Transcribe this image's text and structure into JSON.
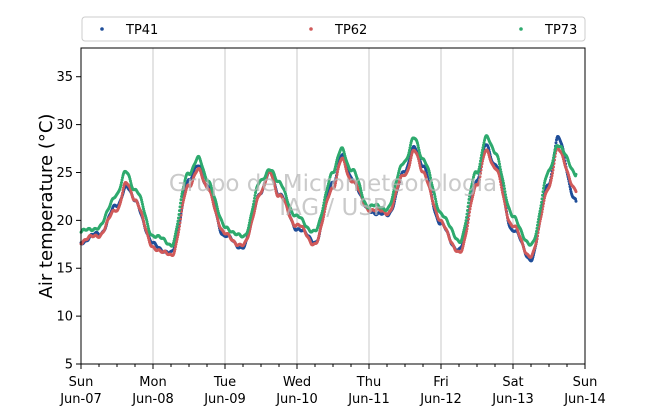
{
  "chart_data": {
    "type": "scatter",
    "ylabel": "Air temperature (°C)",
    "xlabel": "",
    "watermark": [
      "Grupo de Micrometeorologia",
      "IAG / USP"
    ],
    "ylim": [
      5,
      38
    ],
    "xlim": [
      "2020-06-07 00:00",
      "2020-06-14 00:00"
    ],
    "yticks": [
      5,
      10,
      15,
      20,
      25,
      30,
      35
    ],
    "xticks": [
      {
        "day": "Sun",
        "date": "Jun-07"
      },
      {
        "day": "Mon",
        "date": "Jun-08"
      },
      {
        "day": "Tue",
        "date": "Jun-09"
      },
      {
        "day": "Wed",
        "date": "Jun-10"
      },
      {
        "day": "Thu",
        "date": "Jun-11"
      },
      {
        "day": "Fri",
        "date": "Jun-12"
      },
      {
        "day": "Sat",
        "date": "Jun-13"
      },
      {
        "day": "Sun",
        "date": "Jun-14"
      }
    ],
    "grid": "vertical lines at day boundaries",
    "legend_position": "top, outside plot, horizontal",
    "series": [
      {
        "name": "TP41",
        "color": "#1f4e99",
        "x": [
          "2020-06-07 00:00",
          "2020-06-07 06:00",
          "2020-06-07 12:00",
          "2020-06-07 15:00",
          "2020-06-07 18:00",
          "2020-06-08 00:00",
          "2020-06-08 06:00",
          "2020-06-08 12:00",
          "2020-06-08 15:00",
          "2020-06-08 18:00",
          "2020-06-09 00:00",
          "2020-06-09 06:00",
          "2020-06-09 12:00",
          "2020-06-09 15:00",
          "2020-06-09 18:00",
          "2020-06-10 00:00",
          "2020-06-10 06:00",
          "2020-06-10 12:00",
          "2020-06-10 15:00",
          "2020-06-10 18:00",
          "2020-06-11 00:00",
          "2020-06-11 06:00",
          "2020-06-11 12:00",
          "2020-06-11 15:00",
          "2020-06-11 18:00",
          "2020-06-12 00:00",
          "2020-06-12 06:00",
          "2020-06-12 12:00",
          "2020-06-12 15:00",
          "2020-06-12 18:00",
          "2020-06-13 00:00",
          "2020-06-13 06:00",
          "2020-06-13 12:00",
          "2020-06-13 15:00",
          "2020-06-13 21:00"
        ],
        "y": [
          17.8,
          18.6,
          21.5,
          23.6,
          22.0,
          17.5,
          16.5,
          24.0,
          25.9,
          23.5,
          18.3,
          17.2,
          23.0,
          25.0,
          22.8,
          19.2,
          17.8,
          24.0,
          26.8,
          24.5,
          21.0,
          20.5,
          25.0,
          27.8,
          25.5,
          19.5,
          16.8,
          24.0,
          28.0,
          25.8,
          19.0,
          16.0,
          24.0,
          28.5,
          22.0
        ]
      },
      {
        "name": "TP62",
        "color": "#d05a5a",
        "x": [
          "2020-06-07 00:00",
          "2020-06-07 06:00",
          "2020-06-07 12:00",
          "2020-06-07 15:00",
          "2020-06-07 18:00",
          "2020-06-08 00:00",
          "2020-06-08 06:00",
          "2020-06-08 12:00",
          "2020-06-08 15:00",
          "2020-06-08 18:00",
          "2020-06-09 00:00",
          "2020-06-09 06:00",
          "2020-06-09 12:00",
          "2020-06-09 15:00",
          "2020-06-09 18:00",
          "2020-06-10 00:00",
          "2020-06-10 06:00",
          "2020-06-10 12:00",
          "2020-06-10 15:00",
          "2020-06-10 18:00",
          "2020-06-11 00:00",
          "2020-06-11 06:00",
          "2020-06-11 12:00",
          "2020-06-11 15:00",
          "2020-06-11 18:00",
          "2020-06-12 00:00",
          "2020-06-12 06:00",
          "2020-06-12 12:00",
          "2020-06-12 15:00",
          "2020-06-12 18:00",
          "2020-06-13 00:00",
          "2020-06-13 06:00",
          "2020-06-13 12:00",
          "2020-06-13 15:00",
          "2020-06-13 21:00"
        ],
        "y": [
          17.8,
          18.5,
          21.2,
          23.8,
          22.2,
          17.2,
          16.3,
          23.5,
          25.5,
          23.3,
          18.5,
          17.3,
          22.8,
          25.2,
          22.5,
          19.5,
          17.6,
          23.5,
          26.3,
          24.3,
          21.2,
          20.8,
          24.8,
          27.3,
          25.0,
          19.8,
          16.5,
          23.5,
          27.5,
          25.3,
          19.3,
          16.2,
          23.5,
          27.5,
          23.0
        ]
      },
      {
        "name": "TP73",
        "color": "#2eaa6e",
        "x": [
          "2020-06-07 00:00",
          "2020-06-07 06:00",
          "2020-06-07 12:00",
          "2020-06-07 15:00",
          "2020-06-07 18:00",
          "2020-06-08 00:00",
          "2020-06-08 06:00",
          "2020-06-08 12:00",
          "2020-06-08 15:00",
          "2020-06-08 18:00",
          "2020-06-09 00:00",
          "2020-06-09 06:00",
          "2020-06-09 12:00",
          "2020-06-09 15:00",
          "2020-06-09 18:00",
          "2020-06-10 00:00",
          "2020-06-10 06:00",
          "2020-06-10 12:00",
          "2020-06-10 15:00",
          "2020-06-10 18:00",
          "2020-06-11 00:00",
          "2020-06-11 06:00",
          "2020-06-11 12:00",
          "2020-06-11 15:00",
          "2020-06-11 18:00",
          "2020-06-12 00:00",
          "2020-06-12 06:00",
          "2020-06-12 12:00",
          "2020-06-12 15:00",
          "2020-06-12 18:00",
          "2020-06-13 00:00",
          "2020-06-13 06:00",
          "2020-06-13 12:00",
          "2020-06-13 15:00",
          "2020-06-13 21:00"
        ],
        "y": [
          18.8,
          19.3,
          22.8,
          25.0,
          23.3,
          18.5,
          17.5,
          25.0,
          26.5,
          24.3,
          19.3,
          18.2,
          24.0,
          25.5,
          23.8,
          20.3,
          18.8,
          25.0,
          27.5,
          25.3,
          21.5,
          21.3,
          26.3,
          28.5,
          26.5,
          20.8,
          17.8,
          25.0,
          28.8,
          27.0,
          20.3,
          17.3,
          25.0,
          28.0,
          24.8
        ]
      }
    ]
  }
}
